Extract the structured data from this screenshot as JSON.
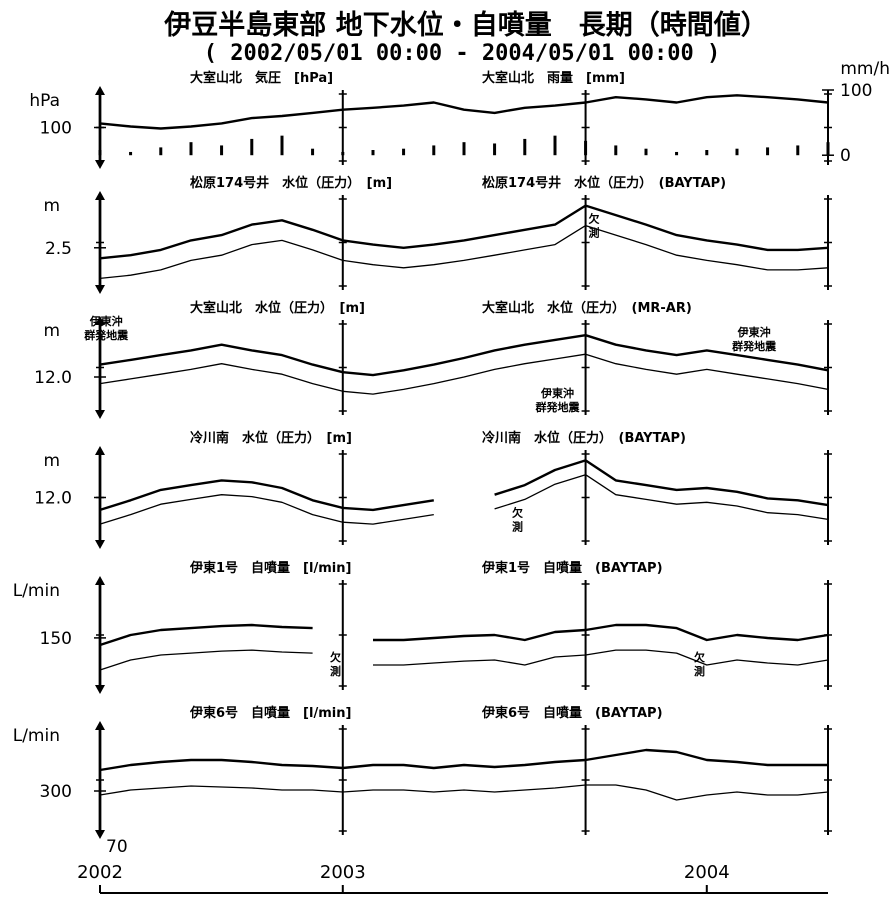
{
  "chart_data": {
    "type": "line",
    "title": "伊豆半島東部 地下水位・自噴量　長期（時間値）",
    "subtitle": "( 2002/05/01 00:00 - 2004/05/01 00:00 )",
    "x": [
      2002.333,
      2002.417,
      2002.5,
      2002.583,
      2002.667,
      2002.75,
      2002.833,
      2002.917,
      2003,
      2003.083,
      2003.167,
      2003.25,
      2003.333,
      2003.417,
      2003.5,
      2003.583,
      2003.667,
      2003.75,
      2003.833,
      2003.917,
      2004,
      2004.083,
      2004.167,
      2004.25,
      2004.333
    ],
    "xlim": [
      2002.333,
      2004.333
    ],
    "xticks": [
      {
        "value": 2002.333,
        "label": "2002"
      },
      2003,
      2004
    ],
    "dividers": [
      2002.333,
      2003,
      2003.667,
      2004.333
    ],
    "panels": [
      {
        "unit": "hPa",
        "ylim": [
          97,
          103
        ],
        "yticks": [
          100
        ],
        "y2_unit": "mm/h",
        "y2lim": [
          -15,
          100
        ],
        "y2ticks": [
          0,
          100
        ],
        "series": [
          {
            "name": "大室山北　気圧　[hPa]",
            "color": "#000000",
            "values": [
              100.33,
              100.08,
              99.92,
              100.08,
              100.33,
              100.75,
              100.92,
              101.17,
              101.42,
              101.58,
              101.75,
              102.0,
              101.42,
              101.17,
              101.58,
              101.75,
              102.0,
              102.42,
              102.25,
              102.0,
              102.42,
              102.58,
              102.42,
              102.25,
              102.0
            ]
          },
          {
            "name": "大室山北　雨量　[mm]",
            "color": "#000000",
            "axis": "y2",
            "type": "bar",
            "values": [
              8,
              5,
              12,
              20,
              15,
              25,
              30,
              10,
              5,
              8,
              10,
              15,
              20,
              18,
              25,
              30,
              22,
              15,
              10,
              5,
              8,
              10,
              12,
              15,
              20
            ]
          }
        ]
      },
      {
        "unit": "m",
        "ylim": [
          2.1,
          3.0
        ],
        "yticks": [
          2.5
        ],
        "series": [
          {
            "name": "松原174号井　水位（圧力）　[m]",
            "color": "#000000",
            "values": [
              2.4,
              2.43,
              2.48,
              2.57,
              2.62,
              2.72,
              2.76,
              2.67,
              2.57,
              2.53,
              2.5,
              2.53,
              2.57,
              2.62,
              2.67,
              2.72,
              2.9,
              2.81,
              2.72,
              2.62,
              2.57,
              2.53,
              2.48,
              2.48,
              2.5
            ]
          },
          {
            "name": "松原174号井　水位（圧力）　(BAYTAP)",
            "color": "#000000",
            "values": [
              2.21,
              2.24,
              2.29,
              2.38,
              2.43,
              2.53,
              2.57,
              2.48,
              2.38,
              2.34,
              2.31,
              2.34,
              2.38,
              2.43,
              2.48,
              2.53,
              2.71,
              2.62,
              2.53,
              2.43,
              2.38,
              2.34,
              2.29,
              2.29,
              2.31
            ]
          }
        ],
        "annotations": [
          {
            "lines": [
              "欠",
              "測"
            ],
            "x": 2003.69,
            "y": 2.74
          }
        ]
      },
      {
        "unit": "m",
        "ylim": [
          11.6,
          12.6
        ],
        "yticks": [
          {
            "value": 12,
            "label": "12.0"
          }
        ],
        "series": [
          {
            "name": "大室山北　水位（圧力）　[m]",
            "color": "#000000",
            "values": [
              12.13,
              12.18,
              12.23,
              12.28,
              12.34,
              12.28,
              12.23,
              12.13,
              12.05,
              12.02,
              12.07,
              12.13,
              12.2,
              12.28,
              12.34,
              12.39,
              12.44,
              12.34,
              12.28,
              12.23,
              12.28,
              12.23,
              12.18,
              12.13,
              12.07
            ]
          },
          {
            "name": "大室山北　水位（圧力）　(MR-AR)",
            "color": "#000000",
            "values": [
              11.93,
              11.98,
              12.03,
              12.08,
              12.14,
              12.08,
              12.03,
              11.93,
              11.85,
              11.82,
              11.87,
              11.93,
              12.0,
              12.08,
              12.14,
              12.19,
              12.24,
              12.14,
              12.08,
              12.03,
              12.08,
              12.03,
              11.98,
              11.93,
              11.87
            ]
          }
        ],
        "annotations": [
          {
            "lines": [
              "伊東沖",
              "群発地震"
            ],
            "x": 2002.35,
            "y": 12.55
          },
          {
            "lines": [
              "伊東沖",
              "群発地震"
            ],
            "x": 2003.59,
            "y": 11.79
          },
          {
            "lines": [
              "伊東沖",
              "群発地震"
            ],
            "x": 2004.13,
            "y": 12.43
          }
        ]
      },
      {
        "unit": "m",
        "ylim": [
          11.5,
          12.5
        ],
        "yticks": [
          {
            "value": 12,
            "label": "12.0"
          }
        ],
        "series": [
          {
            "name": "冷川南　水位（圧力）　[m]",
            "color": "#000000",
            "values": [
              11.87,
              11.97,
              12.08,
              12.13,
              12.18,
              12.16,
              12.1,
              11.97,
              11.89,
              11.87,
              11.92,
              11.97,
              null,
              12.03,
              12.13,
              12.29,
              12.39,
              12.18,
              12.13,
              12.08,
              12.1,
              12.06,
              11.99,
              11.97,
              11.92
            ]
          },
          {
            "name": "冷川南　水位（圧力）　(BAYTAP)",
            "color": "#000000",
            "values": [
              11.72,
              11.82,
              11.93,
              11.98,
              12.03,
              12.01,
              11.95,
              11.82,
              11.74,
              11.72,
              11.77,
              11.82,
              null,
              11.88,
              11.98,
              12.14,
              12.24,
              12.03,
              11.98,
              11.93,
              11.95,
              11.91,
              11.84,
              11.82,
              11.77
            ]
          }
        ],
        "annotations": [
          {
            "lines": [
              "欠",
              "測"
            ],
            "x": 2003.48,
            "y": 11.8
          }
        ]
      },
      {
        "unit": "L/min",
        "ylim": [
          105,
          200
        ],
        "yticks": [
          150
        ],
        "series": [
          {
            "name": "伊東1号　自噴量　[l/min]",
            "color": "#000000",
            "values": [
              143.9,
              152.5,
              156.8,
              158.5,
              160.2,
              161.1,
              159.4,
              158.5,
              null,
              148.2,
              148.2,
              149.9,
              151.6,
              152.5,
              148.2,
              155.1,
              156.8,
              161.1,
              161.1,
              158.5,
              148.2,
              152.5,
              149.9,
              148.2,
              152.5
            ]
          },
          {
            "name": "伊東1号　自噴量　(BAYTAP)",
            "color": "#000000",
            "values": [
              122.3,
              130.9,
              135.2,
              136.9,
              138.6,
              139.5,
              137.8,
              136.9,
              null,
              126.6,
              126.6,
              128.3,
              130.0,
              130.9,
              126.6,
              133.5,
              135.2,
              139.5,
              139.5,
              136.9,
              126.6,
              130.9,
              128.3,
              126.6,
              130.9
            ]
          }
        ],
        "annotations": [
          {
            "lines": [
              "欠",
              "測"
            ],
            "x": 2002.98,
            "y": 130
          },
          {
            "lines": [
              "欠",
              "測"
            ],
            "x": 2003.98,
            "y": 130
          }
        ]
      },
      {
        "unit": "L/min",
        "ylim": [
          260,
          360
        ],
        "yticks": [
          300
        ],
        "bottom_label": "70",
        "series": [
          {
            "name": "伊東6号　自噴量　[l/min]",
            "color": "#000000",
            "values": [
              319.1,
              323.6,
              326.4,
              328.2,
              328.2,
              326.4,
              323.6,
              322.7,
              320.9,
              323.6,
              323.6,
              320.9,
              323.6,
              321.8,
              323.6,
              326.4,
              328.2,
              332.7,
              337.3,
              335.5,
              328.2,
              326.4,
              323.6,
              323.6,
              323.6
            ]
          },
          {
            "name": "伊東6号　自噴量　(BAYTAP)",
            "color": "#000000",
            "values": [
              296.4,
              300.9,
              302.7,
              304.5,
              303.6,
              302.7,
              300.9,
              300.9,
              299.1,
              300.9,
              300.9,
              299.1,
              300.9,
              299.1,
              300.9,
              302.7,
              305.5,
              305.5,
              300.9,
              291.8,
              296.4,
              299.1,
              296.4,
              296.4,
              299.1
            ]
          }
        ]
      }
    ]
  }
}
